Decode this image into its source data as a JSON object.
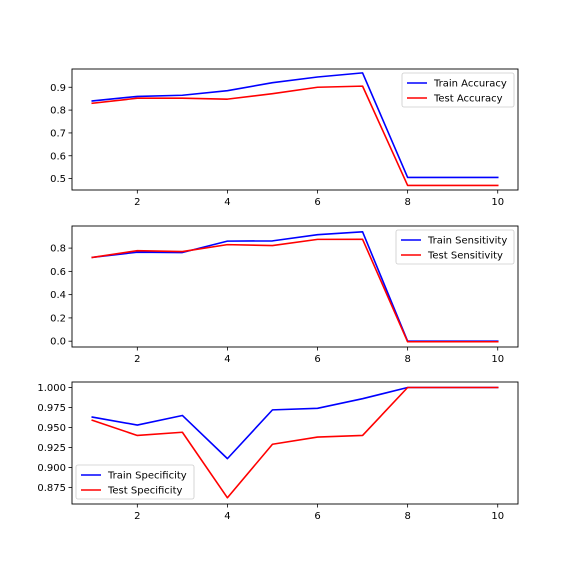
{
  "chart_data": [
    {
      "type": "line",
      "x": [
        1,
        2,
        3,
        4,
        5,
        6,
        7,
        8,
        9,
        10
      ],
      "xlim": [
        0.55,
        10.45
      ],
      "ylim": [
        0.45,
        0.98
      ],
      "xticks": [
        2,
        4,
        6,
        8,
        10
      ],
      "yticks": [
        0.5,
        0.6,
        0.7,
        0.8,
        0.9
      ],
      "ytick_labels": [
        "0.5",
        "0.6",
        "0.7",
        "0.8",
        "0.9"
      ],
      "legend_position": "upper right",
      "grid": false,
      "series": [
        {
          "name": "Train Accuracy",
          "color": "#0000ff",
          "values": [
            0.84,
            0.86,
            0.865,
            0.885,
            0.92,
            0.945,
            0.963,
            0.505,
            0.505,
            0.505
          ]
        },
        {
          "name": "Test Accuracy",
          "color": "#ff0000",
          "values": [
            0.83,
            0.852,
            0.852,
            0.848,
            0.872,
            0.9,
            0.905,
            0.47,
            0.47,
            0.47
          ]
        }
      ]
    },
    {
      "type": "line",
      "x": [
        1,
        2,
        3,
        4,
        5,
        6,
        7,
        8,
        9,
        10
      ],
      "xlim": [
        0.55,
        10.45
      ],
      "ylim": [
        -0.05,
        0.99
      ],
      "xticks": [
        2,
        4,
        6,
        8,
        10
      ],
      "yticks": [
        0.0,
        0.2,
        0.4,
        0.6,
        0.8
      ],
      "ytick_labels": [
        "0.0",
        "0.2",
        "0.4",
        "0.6",
        "0.8"
      ],
      "legend_position": "upper right",
      "grid": false,
      "series": [
        {
          "name": "Train Sensitivity",
          "color": "#0000ff",
          "values": [
            0.72,
            0.765,
            0.762,
            0.86,
            0.862,
            0.915,
            0.94,
            0.0,
            0.0,
            0.0
          ]
        },
        {
          "name": "Test Sensitivity",
          "color": "#ff0000",
          "values": [
            0.72,
            0.778,
            0.77,
            0.83,
            0.822,
            0.875,
            0.876,
            -0.005,
            -0.005,
            -0.005
          ]
        }
      ]
    },
    {
      "type": "line",
      "x": [
        1,
        2,
        3,
        4,
        5,
        6,
        7,
        8,
        9,
        10
      ],
      "xlim": [
        0.55,
        10.45
      ],
      "ylim": [
        0.8542,
        1.0069
      ],
      "xticks": [
        2,
        4,
        6,
        8,
        10
      ],
      "yticks": [
        0.875,
        0.9,
        0.925,
        0.95,
        0.975,
        1.0
      ],
      "ytick_labels": [
        "0.875",
        "0.900",
        "0.925",
        "0.950",
        "0.975",
        "1.000"
      ],
      "legend_position": "lower left",
      "grid": false,
      "series": [
        {
          "name": "Train Specificity",
          "color": "#0000ff",
          "values": [
            0.963,
            0.953,
            0.965,
            0.911,
            0.972,
            0.974,
            0.986,
            1.0,
            1.0,
            1.0
          ]
        },
        {
          "name": "Test Specificity",
          "color": "#ff0000",
          "values": [
            0.959,
            0.94,
            0.944,
            0.862,
            0.929,
            0.938,
            0.94,
            1.0,
            1.0,
            1.0
          ]
        }
      ]
    }
  ]
}
